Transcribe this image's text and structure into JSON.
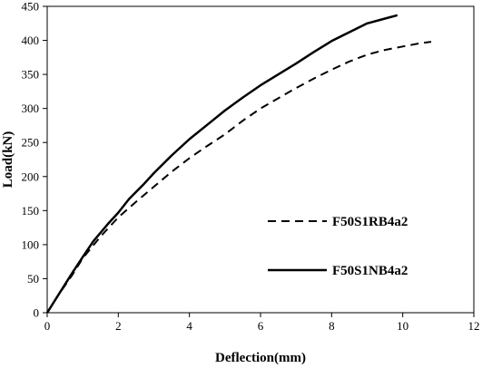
{
  "chart_data": {
    "type": "line",
    "title": "",
    "xlabel": "Deflection(mm)",
    "ylabel": "Load(kN)",
    "xlim": [
      0,
      12
    ],
    "ylim": [
      0,
      450
    ],
    "x_ticks": [
      "0",
      "2",
      "4",
      "6",
      "8",
      "10",
      "12"
    ],
    "y_ticks": [
      "0",
      "50",
      "100",
      "150",
      "200",
      "250",
      "300",
      "350",
      "400",
      "450"
    ],
    "grid": false,
    "legend_position": "right",
    "series": [
      {
        "name": "F50S1RB4a2",
        "style": "dashed",
        "color": "#000000",
        "points": [
          [
            0,
            0
          ],
          [
            0.3,
            25
          ],
          [
            0.7,
            55
          ],
          [
            1.0,
            80
          ],
          [
            1.5,
            112
          ],
          [
            2.0,
            140
          ],
          [
            2.5,
            163
          ],
          [
            3.0,
            185
          ],
          [
            3.5,
            207
          ],
          [
            4.0,
            227
          ],
          [
            4.5,
            245
          ],
          [
            5.0,
            262
          ],
          [
            5.5,
            282
          ],
          [
            6.0,
            300
          ],
          [
            6.5,
            315
          ],
          [
            7.0,
            330
          ],
          [
            7.5,
            344
          ],
          [
            8.0,
            357
          ],
          [
            8.5,
            369
          ],
          [
            9.0,
            379
          ],
          [
            9.5,
            386
          ],
          [
            10.0,
            391
          ],
          [
            10.5,
            396
          ],
          [
            10.8,
            398
          ]
        ]
      },
      {
        "name": "F50S1NB4a2",
        "style": "solid",
        "color": "#000000",
        "points": [
          [
            0,
            0
          ],
          [
            0.3,
            25
          ],
          [
            0.7,
            58
          ],
          [
            1.0,
            82
          ],
          [
            1.3,
            105
          ],
          [
            1.7,
            130
          ],
          [
            2.0,
            147
          ],
          [
            2.3,
            167
          ],
          [
            2.7,
            188
          ],
          [
            3.0,
            205
          ],
          [
            3.5,
            231
          ],
          [
            4.0,
            255
          ],
          [
            4.5,
            276
          ],
          [
            5.0,
            297
          ],
          [
            5.5,
            316
          ],
          [
            6.0,
            334
          ],
          [
            6.5,
            350
          ],
          [
            7.0,
            366
          ],
          [
            7.5,
            383
          ],
          [
            8.0,
            399
          ],
          [
            8.5,
            412
          ],
          [
            9.0,
            425
          ],
          [
            9.5,
            432
          ],
          [
            9.85,
            437
          ]
        ]
      }
    ]
  }
}
